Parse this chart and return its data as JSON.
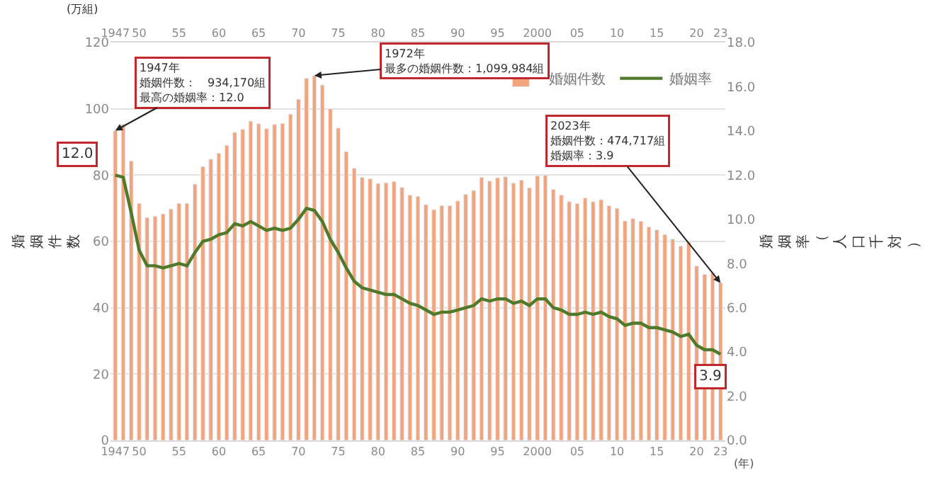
{
  "chart_data": {
    "type": "bar",
    "x": [
      1947,
      1948,
      1949,
      1950,
      1951,
      1952,
      1953,
      1954,
      1955,
      1956,
      1957,
      1958,
      1959,
      1960,
      1961,
      1962,
      1963,
      1964,
      1965,
      1966,
      1967,
      1968,
      1969,
      1970,
      1971,
      1972,
      1973,
      1974,
      1975,
      1976,
      1977,
      1978,
      1979,
      1980,
      1981,
      1982,
      1983,
      1984,
      1985,
      1986,
      1987,
      1988,
      1989,
      1990,
      1991,
      1992,
      1993,
      1994,
      1995,
      1996,
      1997,
      1998,
      1999,
      2000,
      2001,
      2002,
      2003,
      2004,
      2005,
      2006,
      2007,
      2008,
      2009,
      2010,
      2011,
      2012,
      2013,
      2014,
      2015,
      2016,
      2017,
      2018,
      2019,
      2020,
      2021,
      2022,
      2023
    ],
    "series": [
      {
        "name": "婚姻件数",
        "color": "#f2a57c",
        "values": [
          93.4,
          95.3,
          84.3,
          71.5,
          67.2,
          67.6,
          68.3,
          69.8,
          71.5,
          71.5,
          77.3,
          82.6,
          84.8,
          86.6,
          89.0,
          92.9,
          93.8,
          96.3,
          95.5,
          94.0,
          95.3,
          95.6,
          98.4,
          102.9,
          109.2,
          110.0,
          107.2,
          100.0,
          94.2,
          87.1,
          82.1,
          79.3,
          78.9,
          77.5,
          77.7,
          78.1,
          76.3,
          74.0,
          73.6,
          71.1,
          69.6,
          70.8,
          70.8,
          72.2,
          74.2,
          75.4,
          79.3,
          78.2,
          79.2,
          79.5,
          77.6,
          78.5,
          76.2,
          79.8,
          80.0,
          75.7,
          74.0,
          72.0,
          71.4,
          73.1,
          72.0,
          72.6,
          70.8,
          70.0,
          66.2,
          66.9,
          66.1,
          64.4,
          63.5,
          62.1,
          60.7,
          58.6,
          59.9,
          52.6,
          50.1,
          50.5,
          47.5
        ]
      },
      {
        "name": "婚姻率",
        "type": "line",
        "axis": "y2",
        "color": "#4f7a2a",
        "values": [
          12.0,
          11.9,
          10.3,
          8.6,
          7.9,
          7.9,
          7.8,
          7.9,
          8.0,
          7.9,
          8.5,
          9.0,
          9.1,
          9.3,
          9.4,
          9.8,
          9.7,
          9.9,
          9.7,
          9.5,
          9.6,
          9.5,
          9.6,
          10.0,
          10.5,
          10.4,
          9.9,
          9.1,
          8.5,
          7.8,
          7.2,
          6.9,
          6.8,
          6.7,
          6.6,
          6.6,
          6.4,
          6.2,
          6.1,
          5.9,
          5.7,
          5.8,
          5.8,
          5.9,
          6.0,
          6.1,
          6.4,
          6.3,
          6.4,
          6.4,
          6.2,
          6.3,
          6.1,
          6.4,
          6.4,
          6.0,
          5.9,
          5.7,
          5.7,
          5.8,
          5.7,
          5.8,
          5.6,
          5.5,
          5.2,
          5.3,
          5.3,
          5.1,
          5.1,
          5.0,
          4.9,
          4.7,
          4.8,
          4.3,
          4.1,
          4.1,
          3.9
        ]
      }
    ],
    "xlabel": "(年)",
    "ylabel": "婚姻件数",
    "y2label": "婚姻率（人口千対）",
    "xlim": [
      1946.4,
      2023.6
    ],
    "xticks": [
      1947,
      {
        "value": 1950,
        "label": "50"
      },
      {
        "value": 1955,
        "label": "55"
      },
      {
        "value": 1960,
        "label": "60"
      },
      {
        "value": 1965,
        "label": "65"
      },
      {
        "value": 1970,
        "label": "70"
      },
      {
        "value": 1975,
        "label": "75"
      },
      {
        "value": 1980,
        "label": "80"
      },
      {
        "value": 1985,
        "label": "85"
      },
      {
        "value": 1990,
        "label": "90"
      },
      {
        "value": 1995,
        "label": "95"
      },
      2000,
      {
        "value": 2005,
        "label": "05"
      },
      {
        "value": 2010,
        "label": "10"
      },
      {
        "value": 2015,
        "label": "15"
      },
      {
        "value": 2020,
        "label": "20"
      },
      {
        "value": 2023,
        "label": "23"
      }
    ],
    "x2lim": [
      1946.4,
      2023.6
    ],
    "x2ticks": [
      1947,
      {
        "value": 1950,
        "label": "50"
      },
      {
        "value": 1955,
        "label": "55"
      },
      {
        "value": 1960,
        "label": "60"
      },
      {
        "value": 1965,
        "label": "65"
      },
      {
        "value": 1970,
        "label": "70"
      },
      {
        "value": 1975,
        "label": "75"
      },
      {
        "value": 1980,
        "label": "80"
      },
      {
        "value": 1985,
        "label": "85"
      },
      {
        "value": 1990,
        "label": "90"
      },
      {
        "value": 1995,
        "label": "95"
      },
      2000,
      {
        "value": 2005,
        "label": "05"
      },
      {
        "value": 2010,
        "label": "10"
      },
      {
        "value": 2015,
        "label": "15"
      },
      {
        "value": 2020,
        "label": "20"
      },
      {
        "value": 2023,
        "label": "23"
      }
    ],
    "ylim": [
      0,
      120
    ],
    "yticks": [
      0,
      20,
      40,
      60,
      80,
      100,
      120
    ],
    "y2lim": [
      0,
      18
    ],
    "y2ticks": [
      {
        "value": 0,
        "label": "0.0"
      },
      {
        "value": 2,
        "label": "2.0"
      },
      {
        "value": 4,
        "label": "4.0"
      },
      {
        "value": 6,
        "label": "6.0"
      },
      {
        "value": 8,
        "label": "8.0"
      },
      {
        "value": 10,
        "label": "10.0"
      },
      {
        "value": 12,
        "label": "12.0"
      },
      {
        "value": 14,
        "label": "14.0"
      },
      {
        "value": 16,
        "label": "16.0"
      },
      {
        "value": 18,
        "label": "18.0"
      }
    ],
    "grid": "y",
    "legend": "top right",
    "annotations": [
      "(万組)",
      {
        "text": "1947年婚姻件数：　934,170組最高の婚姻率：12.0",
        "x": 1947,
        "y": 93.417
      },
      {
        "text": "1972年最多の婚姻件数：1,099,984組",
        "x": 1972,
        "y": 109.9984
      },
      {
        "text": "2023年婚姻件数：474,717組婚姻率：3.9",
        "x": 2023,
        "y": 47.4717
      },
      "12.0",
      "3.9"
    ]
  }
}
